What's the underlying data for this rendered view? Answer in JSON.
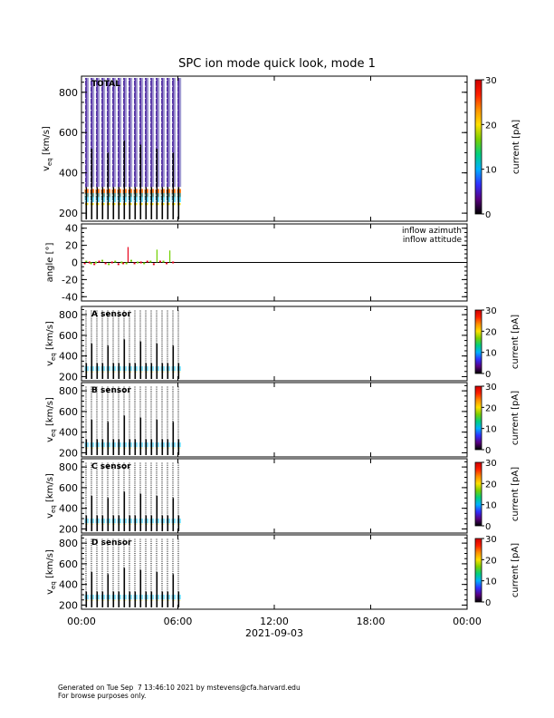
{
  "figure": {
    "title": "SPC ion mode quick look, mode 1",
    "date_label": "2021-09-03",
    "footer_line1": "Generated on Tue Sep  7 13:46:10 2021 by mstevens@cfa.harvard.edu",
    "footer_line2": "For browse purposes only."
  },
  "colors": {
    "azimuth": "#e8001a",
    "attitude": "#70d000",
    "colorbar": [
      "#000000",
      "#5a0080",
      "#3030ff",
      "#00b0ff",
      "#00d080",
      "#7ad000",
      "#ffe000",
      "#ff9000",
      "#ff2000",
      "#d00000"
    ]
  },
  "chart_data": [
    {
      "type": "heatmap",
      "panel": "TOTAL",
      "panel_label": "TOTAL",
      "ylabel": "v",
      "ylabel_sub": "eq",
      "ylabel_unit": " [km/s]",
      "ylim": [
        160,
        880
      ],
      "yticks": [
        200,
        400,
        600,
        800
      ],
      "data_until_hour": 6,
      "colorbar": {
        "label": "current [pA]",
        "range": [
          0,
          30
        ],
        "ticks": [
          0,
          10,
          20,
          30
        ]
      }
    },
    {
      "type": "line",
      "panel": "angle",
      "ylabel": "angle [°]",
      "ylim": [
        -45,
        45
      ],
      "yticks": [
        -40,
        -20,
        0,
        20,
        40
      ],
      "legend": [
        "inflow azimuth",
        "inflow attitude"
      ],
      "legend_position": "top-right",
      "series": [
        {
          "name": "inflow azimuth",
          "x_hours": [
            0.2,
            0.5,
            0.8,
            1.1,
            1.5,
            1.9,
            2.3,
            2.6,
            2.9,
            3.3,
            3.7,
            4.1,
            4.5,
            4.9,
            5.3,
            5.7
          ],
          "values": [
            -1,
            0,
            -2,
            1,
            -1,
            0,
            -2,
            -1,
            18,
            -1,
            0,
            1,
            -2,
            1,
            -1,
            0
          ]
        },
        {
          "name": "inflow attitude",
          "x_hours": [
            0.3,
            0.6,
            0.9,
            1.3,
            1.7,
            2.1,
            2.5,
            2.8,
            3.1,
            3.5,
            3.9,
            4.3,
            4.7,
            5.1,
            5.5
          ],
          "values": [
            1,
            -1,
            0,
            2,
            -2,
            1,
            0,
            -1,
            2,
            0,
            -1,
            1,
            15,
            1,
            14
          ]
        }
      ]
    },
    {
      "type": "heatmap",
      "panel": "A sensor",
      "panel_label": "A sensor",
      "ylabel": "v",
      "ylabel_sub": "eq",
      "ylabel_unit": " [km/s]",
      "ylim": [
        160,
        880
      ],
      "yticks": [
        200,
        400,
        600,
        800
      ],
      "data_until_hour": 6,
      "colorbar": {
        "label": "current [pA]",
        "range": [
          0,
          30
        ],
        "ticks": [
          0,
          10,
          20,
          30
        ]
      }
    },
    {
      "type": "heatmap",
      "panel": "B sensor",
      "panel_label": "B sensor",
      "ylabel": "v",
      "ylabel_sub": "eq",
      "ylabel_unit": " [km/s]",
      "ylim": [
        160,
        880
      ],
      "yticks": [
        200,
        400,
        600,
        800
      ],
      "data_until_hour": 6,
      "colorbar": {
        "label": "current [pA]",
        "range": [
          0,
          30
        ],
        "ticks": [
          0,
          10,
          20,
          30
        ]
      }
    },
    {
      "type": "heatmap",
      "panel": "C sensor",
      "panel_label": "C sensor",
      "ylabel": "v",
      "ylabel_sub": "eq",
      "ylabel_unit": " [km/s]",
      "ylim": [
        160,
        880
      ],
      "yticks": [
        200,
        400,
        600,
        800
      ],
      "data_until_hour": 6,
      "colorbar": {
        "label": "current [pA]",
        "range": [
          0,
          30
        ],
        "ticks": [
          0,
          10,
          20,
          30
        ]
      }
    },
    {
      "type": "heatmap",
      "panel": "D sensor",
      "panel_label": "D sensor",
      "ylabel": "v",
      "ylabel_sub": "eq",
      "ylabel_unit": " [km/s]",
      "ylim": [
        160,
        880
      ],
      "yticks": [
        200,
        400,
        600,
        800
      ],
      "data_until_hour": 6,
      "colorbar": {
        "label": "current [pA]",
        "range": [
          0,
          30
        ],
        "ticks": [
          0,
          10,
          20,
          30
        ]
      }
    }
  ],
  "x_axis": {
    "range_hours": [
      0,
      24
    ],
    "ticks": [
      {
        "hour": 0,
        "label": "00:00"
      },
      {
        "hour": 6,
        "label": "06:00"
      },
      {
        "hour": 12,
        "label": "12:00"
      },
      {
        "hour": 18,
        "label": "18:00"
      },
      {
        "hour": 24,
        "label": "00:00"
      }
    ]
  }
}
